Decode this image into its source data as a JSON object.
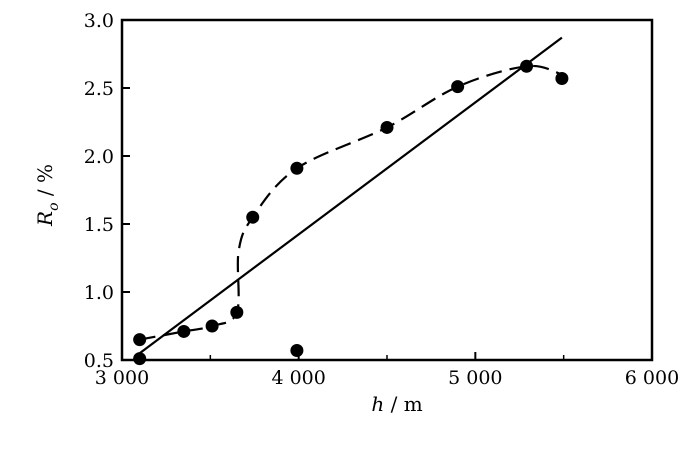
{
  "chart_data": {
    "type": "scatter",
    "xlabel_var": "h",
    "xlabel_unit": "m",
    "ylabel_var": "R",
    "ylabel_sub": "o",
    "ylabel_unit": "%",
    "xlim": [
      3000,
      6000
    ],
    "ylim": [
      0.5,
      3.0
    ],
    "x_ticks": [
      3000,
      4000,
      5000,
      6000
    ],
    "x_tick_labels": [
      "3 000",
      "4 000",
      "5 000",
      "6 000"
    ],
    "y_ticks": [
      0.5,
      1.0,
      1.5,
      2.0,
      2.5,
      3.0
    ],
    "y_tick_labels": [
      "0.5",
      "1.0",
      "1.5",
      "2.0",
      "2.5",
      "3.0"
    ],
    "points": [
      {
        "x": 3100,
        "y": 0.51
      },
      {
        "x": 3100,
        "y": 0.65
      },
      {
        "x": 3350,
        "y": 0.71
      },
      {
        "x": 3510,
        "y": 0.75
      },
      {
        "x": 3650,
        "y": 0.85
      },
      {
        "x": 3740,
        "y": 1.55
      },
      {
        "x": 3990,
        "y": 1.91
      },
      {
        "x": 3990,
        "y": 0.57
      },
      {
        "x": 4500,
        "y": 2.21
      },
      {
        "x": 4900,
        "y": 2.51
      },
      {
        "x": 5290,
        "y": 2.66
      },
      {
        "x": 5490,
        "y": 2.57
      }
    ],
    "series": [
      {
        "style": "solid",
        "x": [
          3100,
          5490
        ],
        "y": [
          0.55,
          2.87
        ]
      },
      {
        "style": "dashed",
        "x": [
          3100,
          3350,
          3510,
          3650,
          3660,
          3740,
          3990,
          4500,
          4900,
          5290,
          5490
        ],
        "y": [
          0.65,
          0.71,
          0.75,
          0.85,
          1.3,
          1.55,
          1.91,
          2.21,
          2.51,
          2.66,
          2.6
        ]
      }
    ],
    "grid": false
  }
}
